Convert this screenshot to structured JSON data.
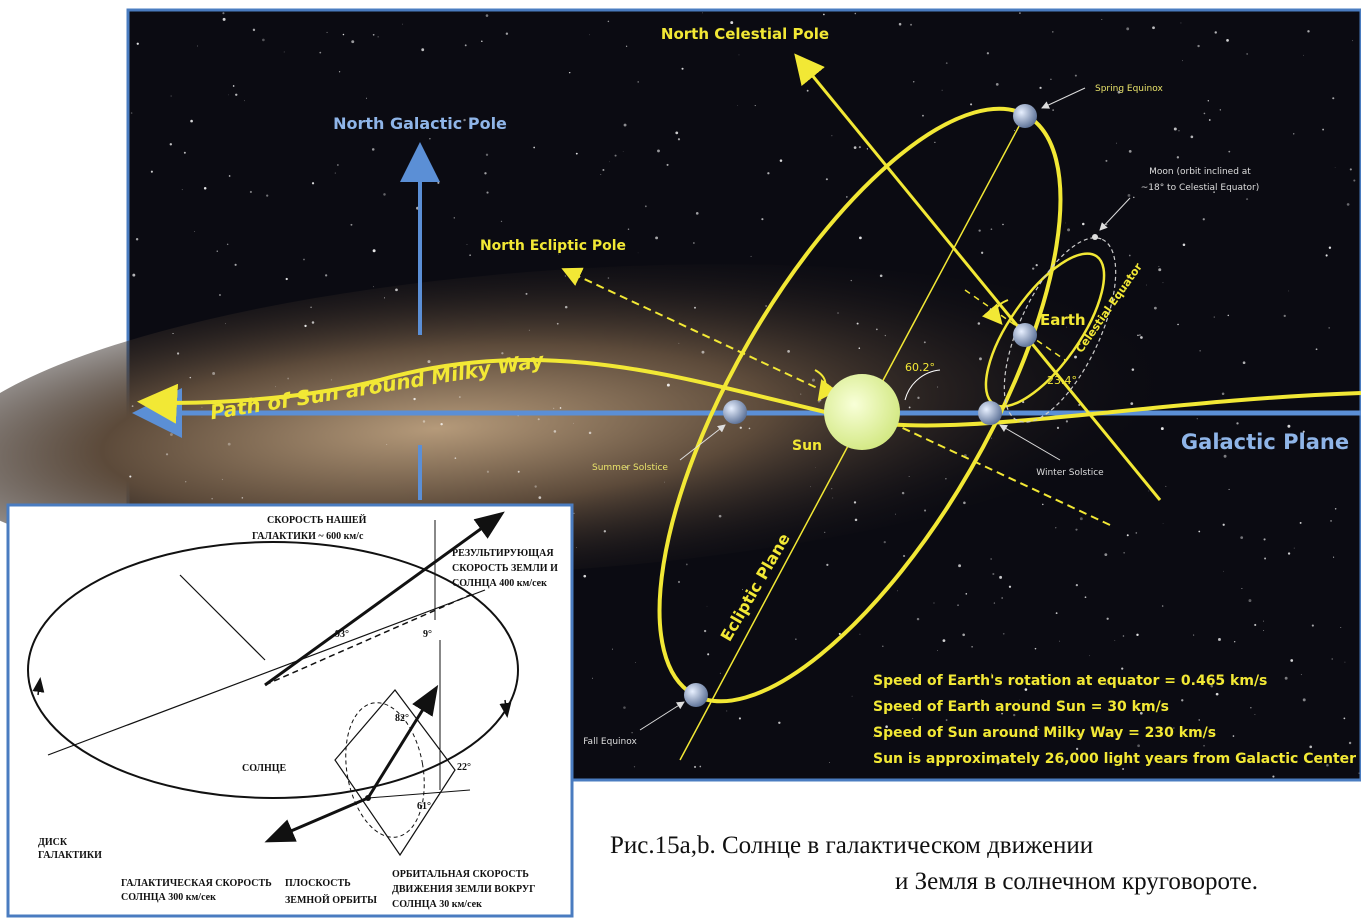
{
  "photo": {
    "north_celestial_pole": "North Celestial Pole",
    "north_galactic_pole": "North Galactic Pole",
    "spring_equinox": "Spring Equinox",
    "moon_note": [
      "Moon (orbit inclined at",
      "~18° to Celestial Equator)"
    ],
    "north_ecliptic_pole": "North Ecliptic Pole",
    "earth": "Earth",
    "celestial_equator": "Celestial Equator",
    "angle_axis": "60.2°",
    "angle_tilt": "23.4°",
    "sun_path": "Path of Sun around Milky Way",
    "sun": "Sun",
    "summer_solstice": "Summer Solstice",
    "winter_solstice": "Winter Solstice",
    "galactic_plane": "Galactic Plane",
    "ecliptic_plane": "Ecliptic Plane",
    "fall_equinox": "Fall Equinox",
    "facts": [
      "Speed of Earth's rotation at equator = 0.465 km/s",
      "Speed of Earth around Sun = 30 km/s",
      "Speed of Sun around Milky Way = 230 km/s",
      "Sun is approximately 26,000 light years from Galactic Center"
    ]
  },
  "inset": {
    "galaxy_speed": [
      "СКОРОСТЬ НАШЕЙ",
      "ГАЛАКТИКИ ~ 600 км/с"
    ],
    "resultant_speed": [
      "РЕЗУЛЬТИРУЮЩАЯ",
      "СКОРОСТЬ ЗЕМЛИ И",
      "СОЛНЦА 400 км/сек"
    ],
    "angles": [
      "93°",
      "9°",
      "82°",
      "22°",
      "61°"
    ],
    "sun": "СОЛНЦЕ",
    "disk": [
      "ДИСК",
      "ГАЛАКТИКИ"
    ],
    "sun_speed": [
      "ГАЛАКТИЧЕСКАЯ СКОРОСТЬ",
      "СОЛНЦА 300 км/сек"
    ],
    "orbit_plane": [
      "ПЛОСКОСТЬ",
      "ЗЕМНОЙ ОРБИТЫ"
    ],
    "orbital_speed": [
      "ОРБИТАЛЬНАЯ СКОРОСТЬ",
      "ДВИЖЕНИЯ ЗЕМЛИ ВОКРУГ",
      "СОЛНЦА 30 км/сек"
    ]
  },
  "caption": [
    "Рис.15a,b. Солнце в галактическом движении",
    "и Земля в солнечном круговороте."
  ]
}
